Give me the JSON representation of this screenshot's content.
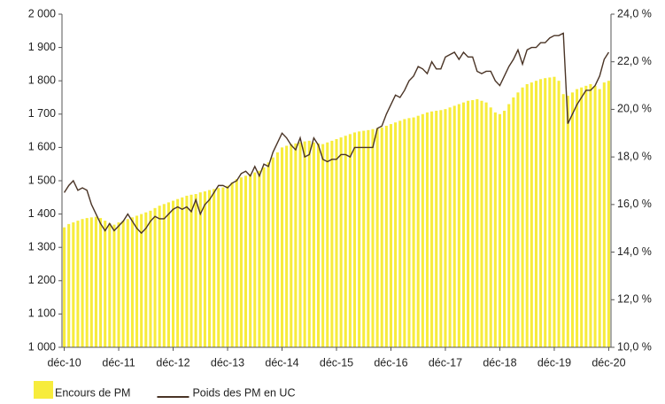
{
  "chart_data": {
    "type": "bar_line",
    "categories": [
      "déc-10",
      null,
      null,
      null,
      null,
      null,
      null,
      null,
      null,
      null,
      null,
      null,
      "déc-11",
      null,
      null,
      null,
      null,
      null,
      null,
      null,
      null,
      null,
      null,
      null,
      "déc-12",
      null,
      null,
      null,
      null,
      null,
      null,
      null,
      null,
      null,
      null,
      null,
      "déc-13",
      null,
      null,
      null,
      null,
      null,
      null,
      null,
      null,
      null,
      null,
      null,
      "déc-14",
      null,
      null,
      null,
      null,
      null,
      null,
      null,
      null,
      null,
      null,
      null,
      "déc-15",
      null,
      null,
      null,
      null,
      null,
      null,
      null,
      null,
      null,
      null,
      null,
      "déc-16",
      null,
      null,
      null,
      null,
      null,
      null,
      null,
      null,
      null,
      null,
      null,
      "déc-17",
      null,
      null,
      null,
      null,
      null,
      null,
      null,
      null,
      null,
      null,
      null,
      "déc-18",
      null,
      null,
      null,
      null,
      null,
      null,
      null,
      null,
      null,
      null,
      null,
      "déc-19",
      null,
      null,
      null,
      null,
      null,
      null,
      null,
      null,
      null,
      null,
      null,
      "déc-20"
    ],
    "series": [
      {
        "name": "Encours de PM",
        "color": "#f7ec3c",
        "kind": "bar",
        "values": [
          1360,
          1370,
          1375,
          1380,
          1385,
          1388,
          1390,
          1392,
          1388,
          1380,
          1372,
          1368,
          1375,
          1380,
          1385,
          1390,
          1395,
          1400,
          1405,
          1410,
          1418,
          1425,
          1430,
          1435,
          1440,
          1445,
          1450,
          1455,
          1458,
          1460,
          1465,
          1468,
          1472,
          1475,
          1478,
          1480,
          1485,
          1495,
          1505,
          1510,
          1515,
          1520,
          1525,
          1530,
          1540,
          1555,
          1570,
          1585,
          1600,
          1605,
          1610,
          1612,
          1615,
          1618,
          1620,
          1615,
          1612,
          1610,
          1615,
          1620,
          1625,
          1630,
          1635,
          1640,
          1645,
          1648,
          1650,
          1652,
          1655,
          1658,
          1660,
          1665,
          1670,
          1675,
          1680,
          1685,
          1688,
          1690,
          1695,
          1700,
          1705,
          1708,
          1710,
          1712,
          1715,
          1720,
          1725,
          1730,
          1735,
          1740,
          1742,
          1745,
          1740,
          1735,
          1720,
          1705,
          1700,
          1710,
          1730,
          1750,
          1765,
          1780,
          1790,
          1795,
          1800,
          1805,
          1808,
          1810,
          1812,
          1800,
          1760,
          1755,
          1765,
          1775,
          1780,
          1785,
          1790,
          1785,
          1775,
          1795,
          1800
        ]
      },
      {
        "name": "Poids des PM en UC",
        "color": "#4a3426",
        "kind": "line",
        "axis": "y2",
        "values": [
          16.5,
          16.8,
          17.0,
          16.6,
          16.7,
          16.6,
          16.0,
          15.6,
          15.2,
          14.9,
          15.2,
          14.9,
          15.1,
          15.3,
          15.6,
          15.3,
          15.0,
          14.8,
          15.0,
          15.3,
          15.5,
          15.4,
          15.4,
          15.6,
          15.8,
          15.9,
          15.8,
          15.9,
          15.7,
          16.2,
          15.6,
          16.0,
          16.2,
          16.5,
          16.8,
          16.8,
          16.7,
          16.9,
          17.0,
          17.3,
          17.4,
          17.2,
          17.6,
          17.2,
          17.7,
          17.6,
          18.2,
          18.6,
          19.0,
          18.8,
          18.5,
          18.3,
          18.8,
          18.0,
          18.1,
          18.8,
          18.5,
          17.9,
          17.8,
          17.9,
          17.9,
          18.1,
          18.1,
          18.0,
          18.4,
          18.4,
          18.4,
          18.4,
          18.4,
          19.2,
          19.3,
          19.8,
          20.2,
          20.6,
          20.5,
          20.8,
          21.2,
          21.4,
          21.8,
          21.7,
          21.5,
          22.0,
          21.7,
          21.7,
          22.2,
          22.3,
          22.4,
          22.1,
          22.4,
          22.2,
          22.2,
          21.6,
          21.5,
          21.6,
          21.6,
          21.2,
          21.0,
          21.4,
          21.8,
          22.1,
          22.5,
          21.9,
          22.5,
          22.6,
          22.6,
          22.8,
          22.8,
          23.0,
          23.1,
          23.1,
          23.2,
          19.4,
          19.8,
          20.2,
          20.5,
          20.8,
          20.8,
          21.0,
          21.4,
          22.1,
          22.4
        ]
      }
    ],
    "ylim": [
      1000,
      2000
    ],
    "yticks": [
      {
        "value": 1000,
        "label": "1 000"
      },
      {
        "value": 1100,
        "label": "1 100"
      },
      {
        "value": 1200,
        "label": "1 200"
      },
      {
        "value": 1300,
        "label": "1 300"
      },
      {
        "value": 1400,
        "label": "1 400"
      },
      {
        "value": 1500,
        "label": "1 500"
      },
      {
        "value": 1600,
        "label": "1 600"
      },
      {
        "value": 1700,
        "label": "1 700"
      },
      {
        "value": 1800,
        "label": "1 800"
      },
      {
        "value": 1900,
        "label": "1 900"
      },
      {
        "value": 2000,
        "label": "2 000"
      }
    ],
    "y2lim": [
      10,
      24
    ],
    "y2ticks": [
      {
        "value": 10,
        "label": "10,0 %"
      },
      {
        "value": 12,
        "label": "12,0 %"
      },
      {
        "value": 14,
        "label": "14,0 %"
      },
      {
        "value": 16,
        "label": "16,0 %"
      },
      {
        "value": 18,
        "label": "18,0 %"
      },
      {
        "value": 20,
        "label": "20,0 %"
      },
      {
        "value": 22,
        "label": "22,0 %"
      },
      {
        "value": 24,
        "label": "24,0 %"
      }
    ],
    "grid": false,
    "legend": "bottom"
  }
}
